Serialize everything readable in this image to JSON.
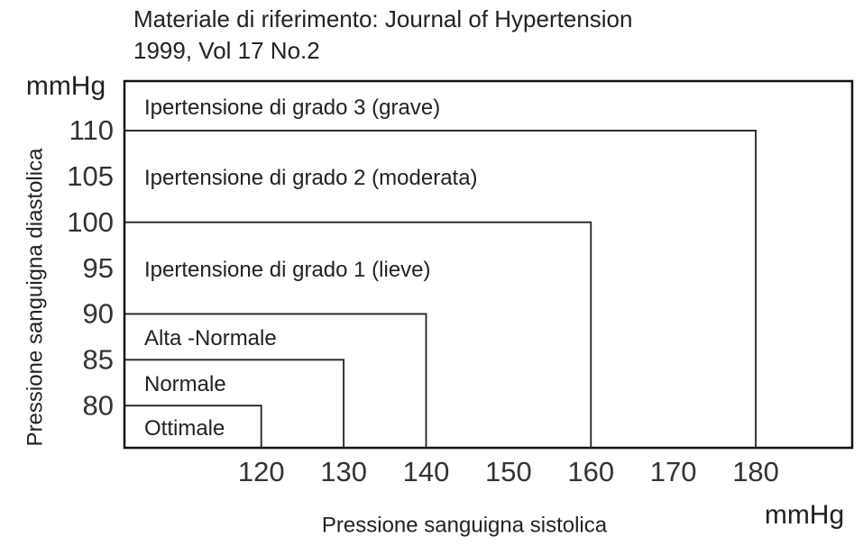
{
  "chart_data": {
    "type": "threshold-regions",
    "title": [
      "Materiale di riferimento: Journal of Hypertension",
      "1999, Vol 17 No.2"
    ],
    "x_label": "Pressione sanguigna sistolica",
    "y_label": "Pressione sanguigna diastolica",
    "x_unit": "mmHg",
    "y_unit": "mmHg",
    "categories": [
      "Ottimale",
      "Normale",
      "Alta -Normale",
      "Ipertensione di grado 1 (lieve)",
      "Ipertensione di grado 2 (moderata)",
      "Ipertensione di grado 3 (grave)"
    ],
    "systolic_limits": [
      120,
      130,
      140,
      160,
      180,
      null
    ],
    "diastolic_limits": [
      80,
      85,
      90,
      100,
      110,
      null
    ],
    "xlim": [
      103.4,
      191.7
    ],
    "ylim": [
      75.4,
      115.4
    ],
    "xticks": [
      120,
      130,
      140,
      150,
      160,
      170,
      180
    ],
    "yticks": [
      80,
      85,
      90,
      95,
      100,
      105,
      110
    ],
    "color": "#222222"
  }
}
